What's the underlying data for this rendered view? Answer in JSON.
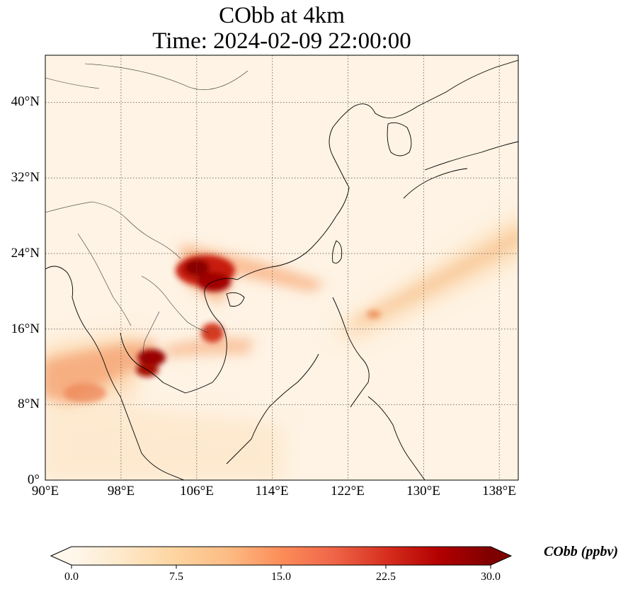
{
  "title": {
    "line1": "CObb at 4km",
    "line2": "Time: 2024-02-09 22:00:00"
  },
  "map": {
    "lon_range": [
      90,
      140
    ],
    "lat_range": [
      0,
      45
    ],
    "x_ticks": [
      "90°E",
      "98°E",
      "106°E",
      "114°E",
      "122°E",
      "130°E",
      "138°E"
    ],
    "y_ticks": [
      "0°",
      "8°N",
      "16°N",
      "24°N",
      "32°N",
      "40°N"
    ],
    "gridlines": "dotted",
    "colormap": "OrRd"
  },
  "colorbar": {
    "label": "CObb (ppbv)",
    "ticks": [
      "0.0",
      "7.5",
      "15.0",
      "22.5",
      "30.0"
    ],
    "range": [
      0,
      30
    ],
    "extend": "both",
    "colors": [
      "#fff7ec",
      "#fee8c8",
      "#fdd49e",
      "#fdbb84",
      "#fc8d59",
      "#ef6548",
      "#d7301f",
      "#b30000",
      "#7f0000"
    ]
  }
}
